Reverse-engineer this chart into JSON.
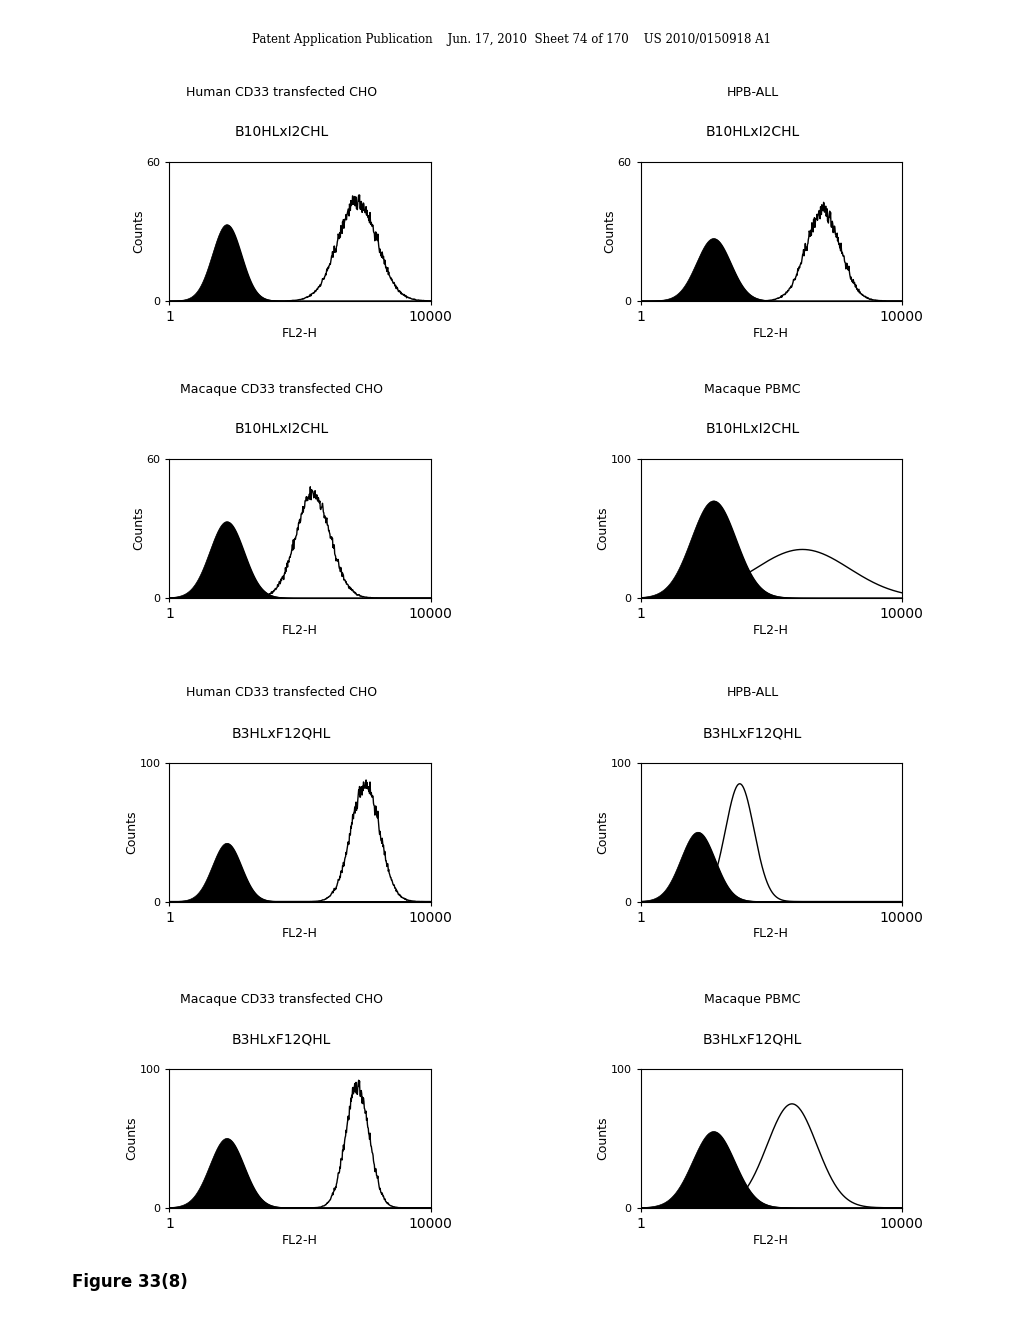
{
  "header_text": "Patent Application Publication    Jun. 17, 2010  Sheet 74 of 170    US 2010/0150918 A1",
  "figure_label": "Figure 33(8)",
  "background_color": "#ffffff",
  "panels": [
    {
      "row": 0,
      "col": 0,
      "title1": "Human CD33 transfected CHO",
      "title2": "B10HLxI2CHL",
      "ylabel": "Counts",
      "xlabel": "FL2-H",
      "ymax": 60,
      "filled_mu": 0.22,
      "filled_sigma": 0.055,
      "filled_amp": 0.55,
      "open_mu": 0.72,
      "open_sigma": 0.075,
      "open_amp": 0.72,
      "open_jagged": true
    },
    {
      "row": 0,
      "col": 1,
      "title1": "HPB-ALL",
      "title2": "B10HLxI2CHL",
      "ylabel": "Counts",
      "xlabel": "FL2-H",
      "ymax": 60,
      "filled_mu": 0.28,
      "filled_sigma": 0.065,
      "filled_amp": 0.45,
      "open_mu": 0.7,
      "open_sigma": 0.065,
      "open_amp": 0.65,
      "open_jagged": true
    },
    {
      "row": 1,
      "col": 0,
      "title1": "Macaque CD33 transfected CHO",
      "title2": "B10HLxI2CHL",
      "ylabel": "Counts",
      "xlabel": "FL2-H",
      "ymax": 60,
      "filled_mu": 0.22,
      "filled_sigma": 0.065,
      "filled_amp": 0.55,
      "open_mu": 0.55,
      "open_sigma": 0.065,
      "open_amp": 0.75,
      "open_jagged": true
    },
    {
      "row": 1,
      "col": 1,
      "title1": "Macaque PBMC",
      "title2": "B10HLxI2CHL",
      "ylabel": "Counts",
      "xlabel": "FL2-H",
      "ymax": 100,
      "filled_mu": 0.28,
      "filled_sigma": 0.085,
      "filled_amp": 0.7,
      "open_mu": 0.62,
      "open_sigma": 0.18,
      "open_amp": 0.35,
      "open_jagged": false
    },
    {
      "row": 2,
      "col": 0,
      "title1": "Human CD33 transfected CHO",
      "title2": "B3HLxF12QHL",
      "ylabel": "Counts",
      "xlabel": "FL2-H",
      "ymax": 100,
      "filled_mu": 0.22,
      "filled_sigma": 0.055,
      "filled_amp": 0.42,
      "open_mu": 0.75,
      "open_sigma": 0.055,
      "open_amp": 0.85,
      "open_jagged": true
    },
    {
      "row": 2,
      "col": 1,
      "title1": "HPB-ALL",
      "title2": "B3HLxF12QHL",
      "ylabel": "Counts",
      "xlabel": "FL2-H",
      "ymax": 100,
      "filled_mu": 0.22,
      "filled_sigma": 0.065,
      "filled_amp": 0.5,
      "open_mu": 0.38,
      "open_sigma": 0.055,
      "open_amp": 0.85,
      "open_jagged": false
    },
    {
      "row": 3,
      "col": 0,
      "title1": "Macaque CD33 transfected CHO",
      "title2": "B3HLxF12QHL",
      "ylabel": "Counts",
      "xlabel": "FL2-H",
      "ymax": 100,
      "filled_mu": 0.22,
      "filled_sigma": 0.065,
      "filled_amp": 0.5,
      "open_mu": 0.72,
      "open_sigma": 0.045,
      "open_amp": 0.88,
      "open_jagged": true
    },
    {
      "row": 3,
      "col": 1,
      "title1": "Macaque PBMC",
      "title2": "B3HLxF12QHL",
      "ylabel": "Counts",
      "xlabel": "FL2-H",
      "ymax": 100,
      "filled_mu": 0.28,
      "filled_sigma": 0.08,
      "filled_amp": 0.55,
      "open_mu": 0.58,
      "open_sigma": 0.095,
      "open_amp": 0.75,
      "open_jagged": false
    }
  ]
}
